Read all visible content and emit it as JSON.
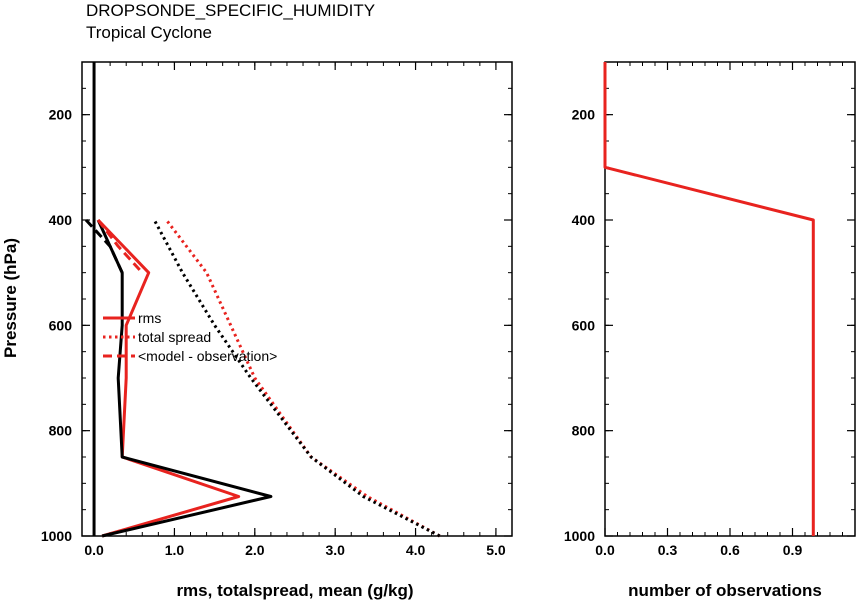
{
  "colors": {
    "red": "#e8231f",
    "black": "#000000"
  },
  "chart_data": [
    {
      "type": "line",
      "title": "DROPSONDE_SPECIFIC_HUMIDITY",
      "subtitle": "Tropical Cyclone",
      "xlabel": "rms, totalspread, mean (g/kg)",
      "ylabel": "Pressure (hPa)",
      "xlim": [
        -0.15,
        5.2
      ],
      "ylim": [
        1000,
        100
      ],
      "y_reversed": true,
      "xticks": [
        "0.0",
        "1.0",
        "2.0",
        "3.0",
        "4.0",
        "5.0"
      ],
      "yticks": [
        "200",
        "400",
        "600",
        "800",
        "1000"
      ],
      "grid": false,
      "legend_position": "center-left",
      "legend": [
        {
          "label": "rms",
          "style": "solid"
        },
        {
          "label": "total spread",
          "style": "dotted"
        },
        {
          "label": "<model - observation>",
          "style": "dashed"
        }
      ],
      "series": [
        {
          "name": "rms",
          "color": "red",
          "style": "solid",
          "points": [
            [
              0.1,
              1000
            ],
            [
              1.8,
              925
            ],
            [
              0.35,
              850
            ],
            [
              0.4,
              700
            ],
            [
              0.4,
              600
            ],
            [
              0.68,
              500
            ],
            [
              0.05,
              400
            ]
          ]
        },
        {
          "name": "rms",
          "color": "black",
          "style": "solid",
          "points": [
            [
              0.1,
              1000
            ],
            [
              2.2,
              925
            ],
            [
              0.35,
              850
            ],
            [
              0.3,
              700
            ],
            [
              0.35,
              600
            ],
            [
              0.35,
              500
            ],
            [
              0.05,
              400
            ]
          ]
        },
        {
          "name": "total spread",
          "color": "red",
          "style": "dotted",
          "points": [
            [
              4.3,
              1000
            ],
            [
              3.4,
              925
            ],
            [
              2.7,
              850
            ],
            [
              2.0,
              700
            ],
            [
              1.7,
              600
            ],
            [
              1.4,
              500
            ],
            [
              0.9,
              400
            ]
          ]
        },
        {
          "name": "total spread",
          "color": "black",
          "style": "dotted",
          "points": [
            [
              4.3,
              1000
            ],
            [
              3.35,
              925
            ],
            [
              2.7,
              850
            ],
            [
              1.95,
              700
            ],
            [
              1.5,
              600
            ],
            [
              1.1,
              500
            ],
            [
              0.75,
              400
            ]
          ]
        },
        {
          "name": "<model - observation>",
          "color": "red",
          "style": "dashed",
          "points": [
            [
              0.05,
              400
            ],
            [
              0.3,
              450
            ],
            [
              0.6,
              500
            ]
          ]
        },
        {
          "name": "<model - observation>",
          "color": "black",
          "style": "dashed",
          "points": [
            [
              -0.1,
              400
            ],
            [
              0.2,
              450
            ],
            [
              0.35,
              500
            ]
          ]
        }
      ],
      "reference_lines": [
        {
          "x": 0.0,
          "color": "black",
          "style": "solid"
        }
      ]
    },
    {
      "type": "line",
      "xlabel": "number of observations",
      "xlim": [
        0,
        1.2
      ],
      "ylim": [
        1000,
        100
      ],
      "y_reversed": true,
      "xticks": [
        "0.0",
        "0.3",
        "0.6",
        "0.9"
      ],
      "yticks": [
        "200",
        "400",
        "600",
        "800",
        "1000"
      ],
      "grid": false,
      "series": [
        {
          "color": "red",
          "style": "solid",
          "points": [
            [
              0,
              100
            ],
            [
              0,
              300
            ],
            [
              1,
              400
            ],
            [
              1,
              1000
            ]
          ]
        }
      ]
    }
  ]
}
